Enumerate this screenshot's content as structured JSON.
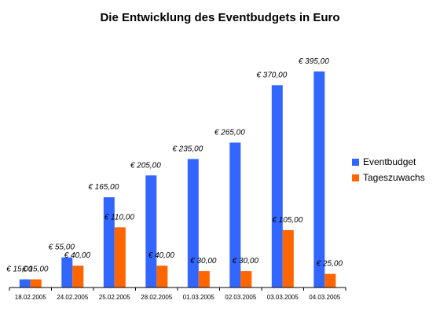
{
  "chart_data": {
    "type": "bar",
    "title": "Die Entwicklung des Eventbudgets in Euro",
    "xlabel": "",
    "ylabel": "",
    "ylim": [
      0,
      400
    ],
    "grid": false,
    "legend_position": "right",
    "categories": [
      "18.02.2005",
      "24.02.2005",
      "25.02.2005",
      "28.02.2005",
      "01.03.2005",
      "02.03.2005",
      "03.03.2005",
      "04.03.2005"
    ],
    "series": [
      {
        "name": "Eventbudget",
        "color": "#3366ff",
        "values": [
          15,
          55,
          165,
          205,
          235,
          265,
          370,
          395
        ],
        "labels": [
          "€ 15,00",
          "€ 55,00",
          "€ 165,00",
          "€ 205,00",
          "€ 235,00",
          "€ 265,00",
          "€ 370,00",
          "€ 395,00"
        ]
      },
      {
        "name": "Tageszuwachs",
        "color": "#ff6600",
        "values": [
          15,
          40,
          110,
          40,
          30,
          30,
          105,
          25
        ],
        "labels": [
          "€ 15,00",
          "€ 40,00",
          "€ 110,00",
          "€ 40,00",
          "€ 30,00",
          "€ 30,00",
          "€ 105,00",
          "€ 25,00"
        ]
      }
    ]
  }
}
